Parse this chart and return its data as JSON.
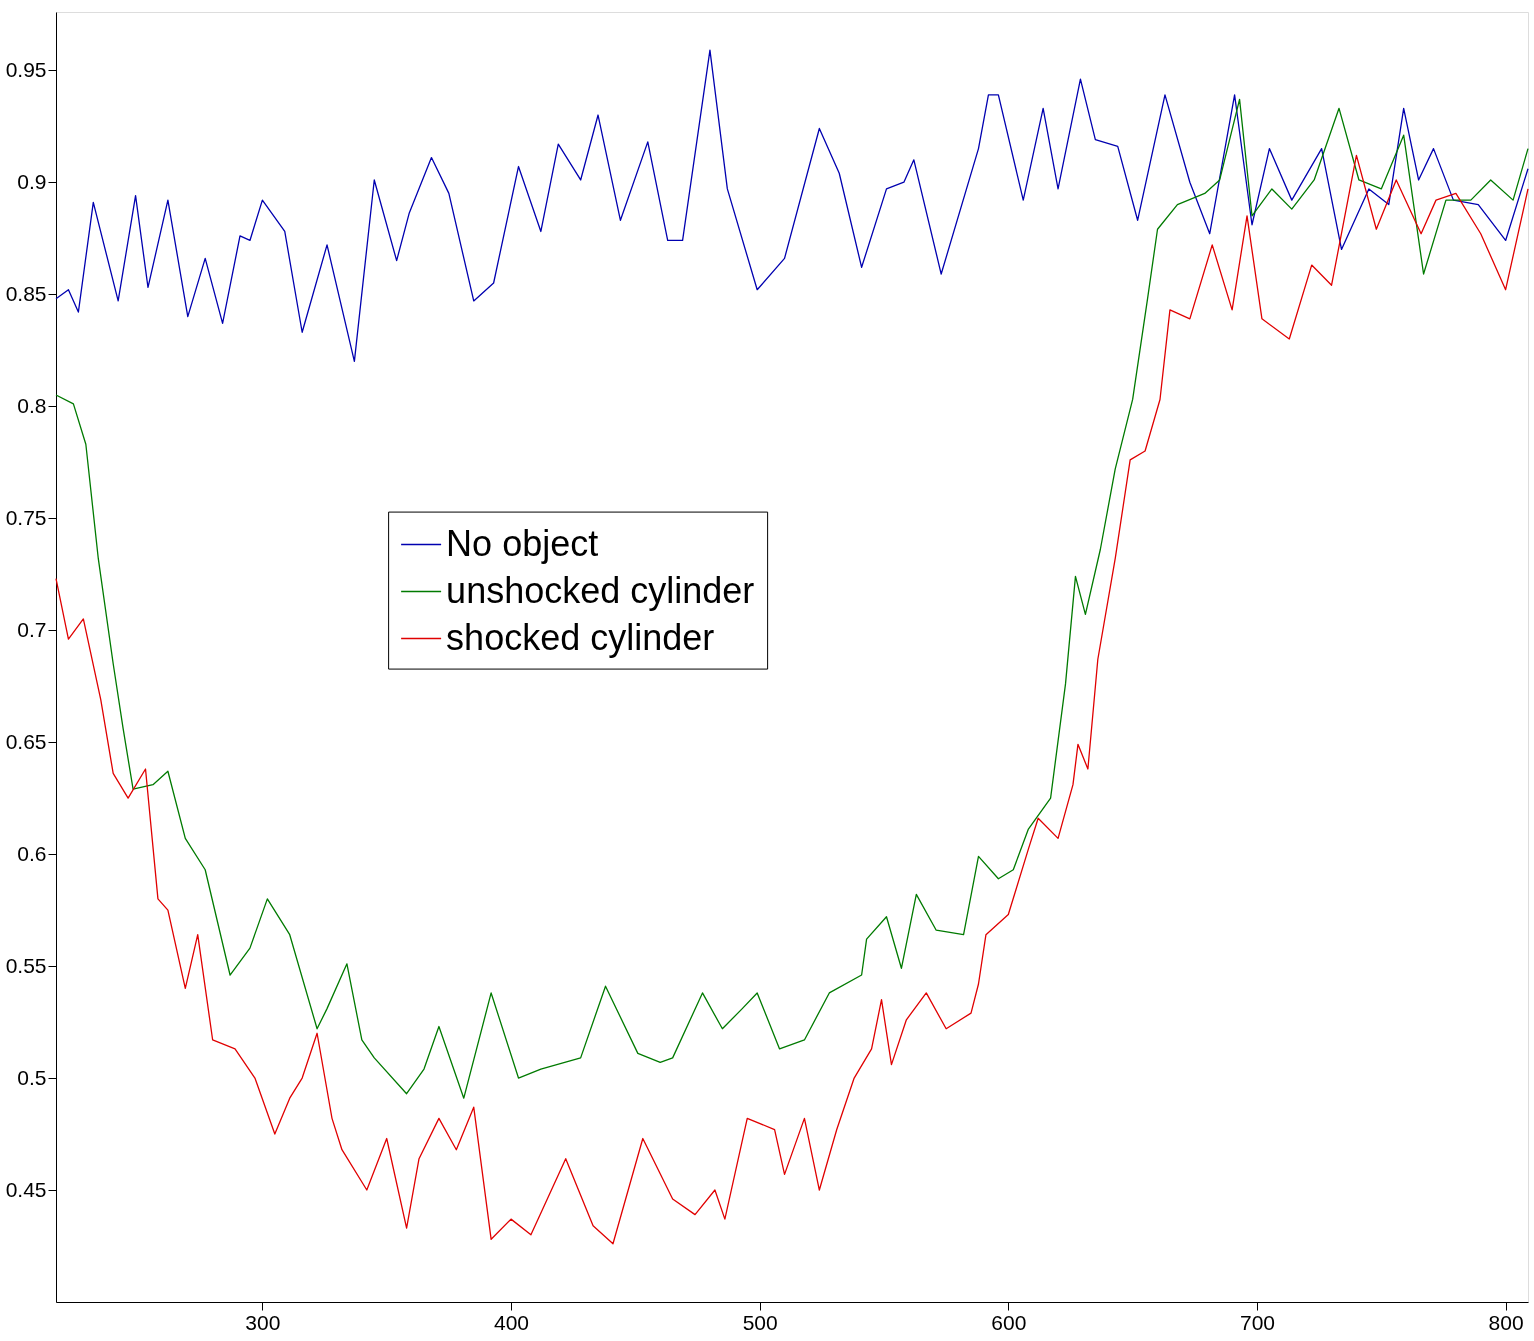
{
  "chart_data": {
    "type": "line",
    "xlim": [
      217,
      809
    ],
    "ylim": [
      0.4,
      0.976
    ],
    "xticks": [
      300,
      400,
      500,
      600,
      700,
      800
    ],
    "yticks": [
      0.45,
      0.5,
      0.55,
      0.6,
      0.65,
      0.7,
      0.75,
      0.8,
      0.85,
      0.9,
      0.95
    ],
    "grid": false,
    "legend": "left",
    "marker": "none",
    "line_style": "solid",
    "series": [
      {
        "name": "No object",
        "color": "#0000b0",
        "x": [
          217,
          222,
          226,
          232,
          242,
          249,
          254,
          262,
          270,
          277,
          284,
          291,
          295,
          300,
          309,
          316,
          326,
          337,
          345,
          354,
          359,
          368,
          375,
          385,
          393,
          403,
          412,
          419,
          428,
          435,
          444,
          455,
          463,
          469,
          480,
          487,
          499,
          510,
          524,
          532,
          541,
          551,
          558,
          562,
          573,
          588,
          592,
          596,
          606,
          614,
          620,
          629,
          635,
          644,
          652,
          663,
          673,
          681,
          691,
          698,
          705,
          714,
          726,
          734,
          745,
          753,
          759,
          765,
          771,
          779,
          789,
          800,
          809
        ],
        "values": [
          0.848,
          0.852,
          0.842,
          0.891,
          0.847,
          0.894,
          0.853,
          0.892,
          0.84,
          0.866,
          0.837,
          0.876,
          0.874,
          0.892,
          0.878,
          0.833,
          0.872,
          0.82,
          0.901,
          0.865,
          0.886,
          0.911,
          0.895,
          0.847,
          0.855,
          0.907,
          0.878,
          0.917,
          0.901,
          0.93,
          0.883,
          0.918,
          0.874,
          0.874,
          0.959,
          0.897,
          0.852,
          0.866,
          0.924,
          0.904,
          0.862,
          0.897,
          0.9,
          0.91,
          0.859,
          0.915,
          0.939,
          0.939,
          0.892,
          0.933,
          0.897,
          0.946,
          0.919,
          0.916,
          0.883,
          0.939,
          0.9,
          0.877,
          0.939,
          0.881,
          0.915,
          0.892,
          0.915,
          0.87,
          0.897,
          0.89,
          0.933,
          0.901,
          0.915,
          0.892,
          0.89,
          0.874,
          0.906
        ]
      },
      {
        "name": "unshocked cylinder",
        "color": "#007a00",
        "x": [
          217,
          224,
          229,
          234,
          240,
          244,
          248,
          256,
          262,
          269,
          277,
          287,
          295,
          302,
          311,
          322,
          326,
          334,
          340,
          345,
          358,
          365,
          371,
          381,
          392,
          403,
          412,
          428,
          438,
          451,
          460,
          465,
          477,
          485,
          493,
          499,
          508,
          518,
          528,
          541,
          543,
          551,
          557,
          563,
          571,
          582,
          588,
          596,
          602,
          608,
          617,
          623,
          627,
          631,
          637,
          643,
          650,
          656,
          660,
          668,
          679,
          685,
          693,
          698,
          706,
          714,
          723,
          733,
          741,
          750,
          759,
          767,
          776,
          786,
          794,
          803,
          809
        ],
        "values": [
          0.805,
          0.801,
          0.783,
          0.732,
          0.685,
          0.656,
          0.629,
          0.631,
          0.637,
          0.607,
          0.593,
          0.546,
          0.558,
          0.58,
          0.564,
          0.522,
          0.531,
          0.551,
          0.517,
          0.509,
          0.493,
          0.504,
          0.523,
          0.491,
          0.538,
          0.5,
          0.504,
          0.509,
          0.541,
          0.511,
          0.507,
          0.509,
          0.538,
          0.522,
          0.531,
          0.538,
          0.513,
          0.517,
          0.538,
          0.546,
          0.562,
          0.572,
          0.549,
          0.582,
          0.566,
          0.564,
          0.599,
          0.589,
          0.593,
          0.611,
          0.625,
          0.676,
          0.724,
          0.707,
          0.736,
          0.772,
          0.803,
          0.848,
          0.879,
          0.89,
          0.895,
          0.901,
          0.937,
          0.885,
          0.897,
          0.888,
          0.901,
          0.933,
          0.901,
          0.897,
          0.921,
          0.859,
          0.892,
          0.892,
          0.901,
          0.892,
          0.915
        ]
      },
      {
        "name": "shocked cylinder",
        "color": "#e00000",
        "x": [
          217,
          222,
          228,
          235,
          240,
          246,
          253,
          258,
          262,
          269,
          274,
          280,
          289,
          297,
          305,
          311,
          316,
          322,
          328,
          332,
          342,
          350,
          358,
          363,
          371,
          378,
          385,
          392,
          400,
          408,
          422,
          433,
          441,
          453,
          465,
          474,
          482,
          486,
          495,
          506,
          510,
          518,
          524,
          531,
          538,
          545,
          549,
          553,
          559,
          567,
          575,
          585,
          588,
          591,
          600,
          608,
          612,
          620,
          626,
          628,
          632,
          636,
          643,
          649,
          655,
          661,
          665,
          673,
          682,
          690,
          696,
          702,
          713,
          722,
          730,
          740,
          748,
          756,
          766,
          772,
          780,
          790,
          800,
          809
        ],
        "values": [
          0.723,
          0.696,
          0.705,
          0.669,
          0.636,
          0.625,
          0.638,
          0.58,
          0.575,
          0.54,
          0.564,
          0.517,
          0.513,
          0.5,
          0.475,
          0.491,
          0.5,
          0.52,
          0.482,
          0.468,
          0.45,
          0.473,
          0.433,
          0.464,
          0.482,
          0.468,
          0.487,
          0.428,
          0.437,
          0.43,
          0.464,
          0.434,
          0.426,
          0.473,
          0.446,
          0.439,
          0.45,
          0.437,
          0.482,
          0.477,
          0.457,
          0.482,
          0.45,
          0.477,
          0.5,
          0.513,
          0.535,
          0.506,
          0.526,
          0.538,
          0.522,
          0.529,
          0.542,
          0.564,
          0.573,
          0.602,
          0.616,
          0.607,
          0.631,
          0.649,
          0.638,
          0.687,
          0.732,
          0.776,
          0.78,
          0.803,
          0.843,
          0.839,
          0.872,
          0.843,
          0.885,
          0.839,
          0.83,
          0.863,
          0.854,
          0.912,
          0.879,
          0.901,
          0.877,
          0.892,
          0.895,
          0.877,
          0.852,
          0.897
        ]
      }
    ]
  }
}
